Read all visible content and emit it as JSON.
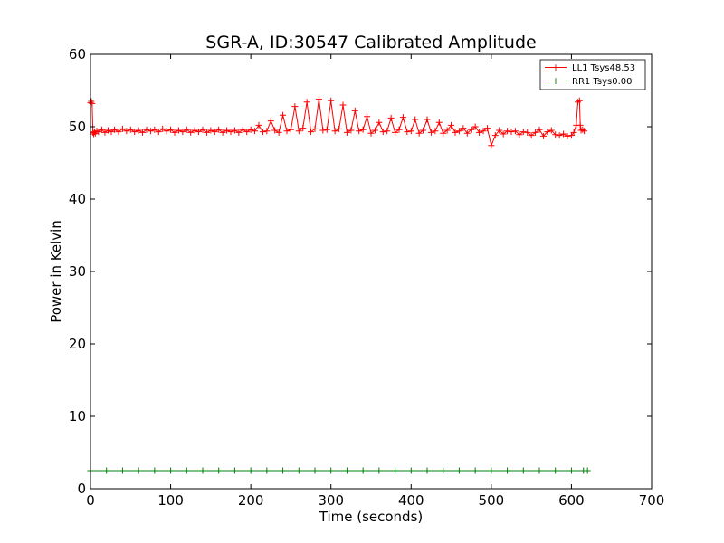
{
  "chart_data": {
    "type": "line",
    "title": "SGR-A, ID:30547 Calibrated Amplitude",
    "xlabel": "Time (seconds)",
    "ylabel": "Power in Kelvin",
    "xlim": [
      0,
      700
    ],
    "ylim": [
      0,
      60
    ],
    "xticks": [
      0,
      100,
      200,
      300,
      400,
      500,
      600,
      700
    ],
    "yticks": [
      0,
      10,
      20,
      30,
      40,
      50,
      60
    ],
    "grid": false,
    "legend_position": "upper-right",
    "series": [
      {
        "name": "LL1 Tsys48.53",
        "color": "#ff0000",
        "marker": "+",
        "x": [
          0,
          1,
          2,
          3,
          4,
          5,
          6,
          8,
          10,
          14,
          18,
          22,
          26,
          30,
          35,
          40,
          45,
          50,
          55,
          60,
          65,
          70,
          75,
          80,
          85,
          90,
          95,
          100,
          105,
          110,
          115,
          120,
          125,
          130,
          135,
          140,
          145,
          150,
          155,
          160,
          165,
          170,
          175,
          180,
          185,
          190,
          195,
          200,
          205,
          210,
          215,
          220,
          225,
          230,
          235,
          240,
          245,
          250,
          255,
          260,
          265,
          270,
          275,
          280,
          285,
          290,
          295,
          300,
          305,
          310,
          315,
          320,
          325,
          330,
          335,
          340,
          345,
          350,
          355,
          360,
          365,
          370,
          375,
          380,
          385,
          390,
          395,
          400,
          405,
          410,
          415,
          420,
          425,
          430,
          435,
          440,
          445,
          450,
          455,
          460,
          465,
          470,
          475,
          480,
          485,
          490,
          495,
          500,
          505,
          510,
          515,
          520,
          525,
          530,
          535,
          540,
          545,
          550,
          555,
          560,
          565,
          570,
          575,
          580,
          585,
          590,
          595,
          600,
          603,
          606,
          608,
          610,
          611,
          612,
          614,
          616
        ],
        "y": [
          53.3,
          53.5,
          53.2,
          49.2,
          49.0,
          49.3,
          49.1,
          49.4,
          49.3,
          49.6,
          49.2,
          49.5,
          49.3,
          49.6,
          49.3,
          49.7,
          49.4,
          49.6,
          49.3,
          49.5,
          49.2,
          49.6,
          49.4,
          49.6,
          49.3,
          49.7,
          49.4,
          49.6,
          49.2,
          49.5,
          49.3,
          49.6,
          49.2,
          49.5,
          49.3,
          49.6,
          49.2,
          49.5,
          49.3,
          49.6,
          49.2,
          49.5,
          49.3,
          49.5,
          49.2,
          49.6,
          49.3,
          49.6,
          49.4,
          50.2,
          49.3,
          49.4,
          50.8,
          49.5,
          49.2,
          51.6,
          49.4,
          49.6,
          52.8,
          49.4,
          49.8,
          53.4,
          49.3,
          49.7,
          53.8,
          49.5,
          49.6,
          53.6,
          49.4,
          49.7,
          53.0,
          49.2,
          49.5,
          52.2,
          49.4,
          49.6,
          51.4,
          49.1,
          49.5,
          50.6,
          49.3,
          49.4,
          51.2,
          49.2,
          49.6,
          51.3,
          49.3,
          49.4,
          51.0,
          49.1,
          49.5,
          51.0,
          49.2,
          49.4,
          50.6,
          49.1,
          49.5,
          50.2,
          49.2,
          49.4,
          49.8,
          49.1,
          49.6,
          50.0,
          49.2,
          49.4,
          49.8,
          47.4,
          48.8,
          49.5,
          49.0,
          49.4,
          49.3,
          49.4,
          48.9,
          49.3,
          49.2,
          48.8,
          49.2,
          49.6,
          48.7,
          49.3,
          49.5,
          48.9,
          48.8,
          49.0,
          48.7,
          48.8,
          49.2,
          50.2,
          53.4,
          53.6,
          50.2,
          49.5,
          49.6,
          49.4
        ]
      },
      {
        "name": "RR1 Tsys0.00",
        "color": "#008000",
        "marker": "+",
        "x": [
          0,
          20,
          40,
          60,
          80,
          100,
          120,
          140,
          160,
          180,
          200,
          220,
          240,
          260,
          280,
          300,
          320,
          340,
          360,
          380,
          400,
          420,
          440,
          460,
          480,
          500,
          520,
          540,
          560,
          580,
          600,
          615,
          620
        ],
        "y": [
          2.5,
          2.5,
          2.5,
          2.5,
          2.5,
          2.5,
          2.5,
          2.5,
          2.5,
          2.5,
          2.5,
          2.5,
          2.5,
          2.5,
          2.5,
          2.5,
          2.5,
          2.5,
          2.5,
          2.5,
          2.5,
          2.5,
          2.5,
          2.5,
          2.5,
          2.5,
          2.5,
          2.5,
          2.5,
          2.5,
          2.5,
          2.5,
          2.5
        ]
      }
    ]
  }
}
